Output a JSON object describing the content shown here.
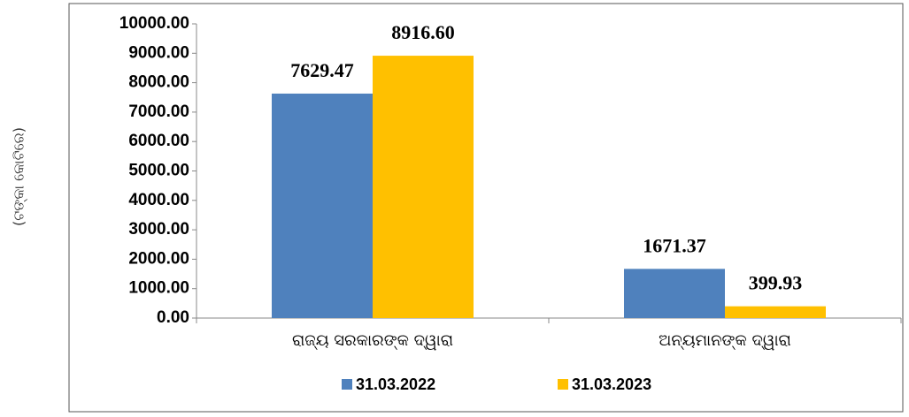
{
  "chart_data": {
    "type": "bar",
    "y_label": "(ଟଙ୍କା କୋଟିରେ)",
    "categories": [
      "ରାଜ୍ୟ ସରକାରଙ୍କ ଦ୍ୱାରା",
      "ଅନ୍ୟମାନଙ୍କ ଦ୍ୱାରା"
    ],
    "series": [
      {
        "name": "31.03.2022",
        "color": "#4f81bd",
        "values": [
          7629.47,
          1671.37
        ]
      },
      {
        "name": "31.03.2023",
        "color": "#ffc000",
        "values": [
          8916.6,
          399.93
        ],
        "value_labels": [
          "8916.60",
          "399.93"
        ]
      }
    ],
    "ylim": [
      0,
      10000
    ],
    "yticks": [
      {
        "value": 0,
        "label": "0.00"
      },
      {
        "value": 1000,
        "label": "1000.00"
      },
      {
        "value": 2000,
        "label": "2000.00"
      },
      {
        "value": 3000,
        "label": "3000.00"
      },
      {
        "value": 4000,
        "label": "4000.00"
      },
      {
        "value": 5000,
        "label": "5000.00"
      },
      {
        "value": 6000,
        "label": "6000.00"
      },
      {
        "value": 7000,
        "label": "7000.00"
      },
      {
        "value": 8000,
        "label": "8000.00"
      },
      {
        "value": 9000,
        "label": "9000.00"
      },
      {
        "value": 10000,
        "label": "10000.00"
      }
    ],
    "legend": "bottom"
  }
}
